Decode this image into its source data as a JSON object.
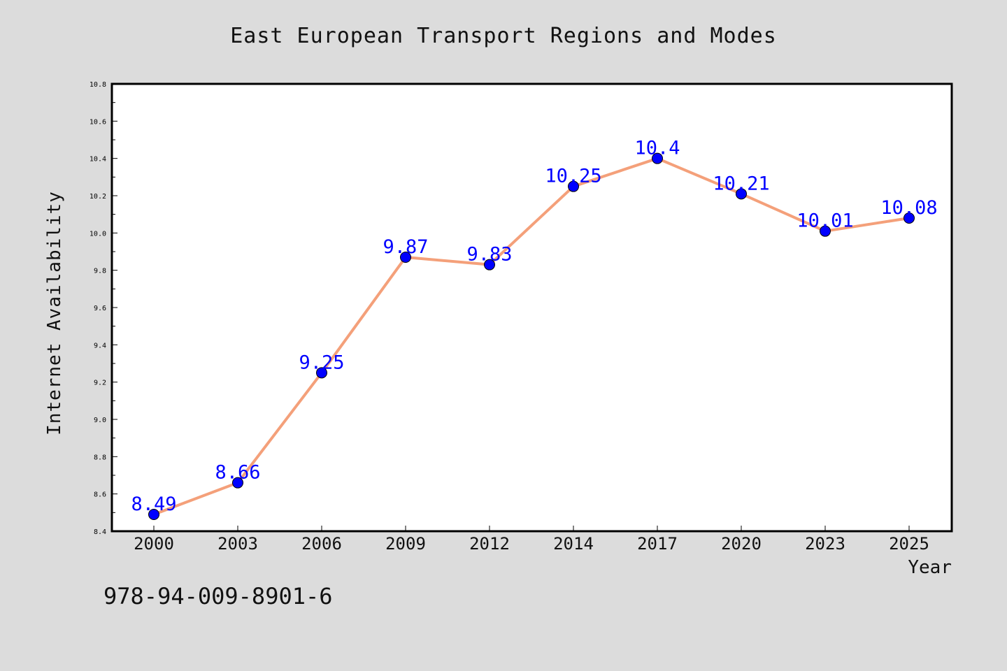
{
  "chart_data": {
    "type": "line",
    "title": "East European Transport Regions and Modes",
    "xlabel": "Year",
    "ylabel": "Internet Availability",
    "categories": [
      "2000",
      "2003",
      "2006",
      "2009",
      "2012",
      "2014",
      "2017",
      "2020",
      "2023",
      "2025"
    ],
    "series": [
      {
        "values": [
          8.49,
          8.66,
          9.25,
          9.87,
          9.83,
          10.25,
          10.4,
          10.21,
          10.01,
          10.08
        ],
        "data_labels": [
          "8.49",
          "8.66",
          "9.25",
          "9.87",
          "9.83",
          "10.25",
          "10.4",
          "10.21",
          "10.01",
          "10.08"
        ],
        "line_color": "#f4a07a",
        "marker_color": "#0000ff"
      }
    ],
    "ylim": [
      8.4,
      10.8
    ],
    "y_ticks": [
      "8.4",
      "8.6",
      "8.8",
      "9.0",
      "9.2",
      "9.4",
      "9.6",
      "9.8",
      "10.0",
      "10.2",
      "10.4",
      "10.6",
      "10.8"
    ],
    "grid": false,
    "legend": "none",
    "label_color": "#0000ff",
    "background": "#dcdcdc",
    "plot_background": "#ffffff"
  },
  "footer": {
    "isbn": "978-94-009-8901-6"
  }
}
